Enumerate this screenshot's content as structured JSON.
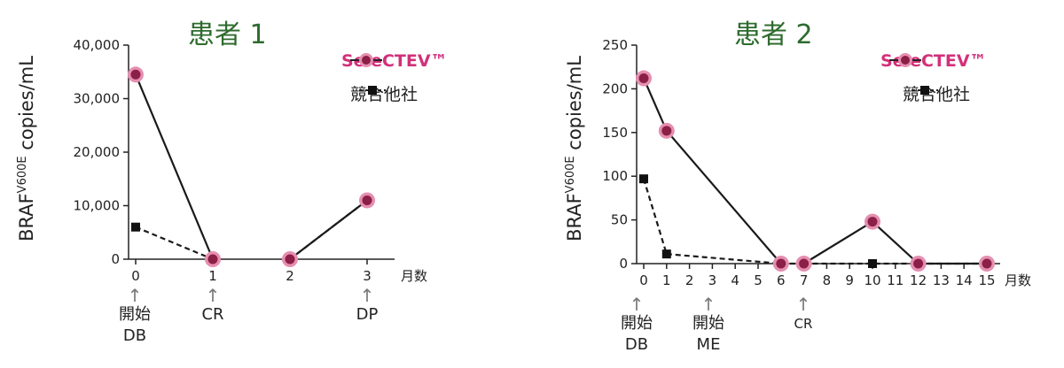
{
  "colors": {
    "selectev": "#d2307a",
    "marker_fill": "#8b1f45",
    "halo": "#e58fb0",
    "competitor": "#111111",
    "title": "#2e6b2e"
  },
  "chart_data": [
    {
      "type": "line",
      "title": "患者 1",
      "ylabel_main": "BRAF",
      "ylabel_sup": "V600E",
      "ylabel_rest": " copies/mL",
      "xunit": "月数",
      "ylim": [
        0,
        40000
      ],
      "yticks": [
        "0",
        "10,000",
        "20,000",
        "30,000",
        "40,000"
      ],
      "xticks": [
        "0",
        "1",
        "2",
        "3"
      ],
      "legend": {
        "selectev": "SeleCTEV™",
        "competitor": "競合他社",
        "position": "top-right"
      },
      "series": [
        {
          "name": "SeleCTEV™",
          "style": "solid-circle",
          "x": [
            0,
            1,
            2,
            3
          ],
          "y": [
            34500,
            0,
            0,
            11000
          ]
        },
        {
          "name": "競合他社",
          "style": "dashed-square",
          "x": [
            0,
            1,
            2,
            3
          ],
          "y": [
            6000,
            0,
            0,
            11000
          ]
        }
      ],
      "events": [
        {
          "x": 0,
          "line1": "開始",
          "line2": "DB"
        },
        {
          "x": 1,
          "line1": "CR",
          "line2": ""
        },
        {
          "x": 3,
          "line1": "DP",
          "line2": ""
        }
      ]
    },
    {
      "type": "line",
      "title": "患者 2",
      "ylabel_main": "BRAF",
      "ylabel_sup": "V600E",
      "ylabel_rest": " copies/mL",
      "xunit": "月数",
      "ylim": [
        0,
        250
      ],
      "yticks": [
        "0",
        "50",
        "100",
        "150",
        "200",
        "250"
      ],
      "xticks": [
        "0",
        "1",
        "2",
        "3",
        "4",
        "5",
        "6",
        "7",
        "8",
        "9",
        "10",
        "11",
        "12",
        "13",
        "14",
        "15"
      ],
      "legend": {
        "selectev": "SeleCTEV™",
        "competitor": "競合他社",
        "position": "top-right"
      },
      "series": [
        {
          "name": "SeleCTEV™",
          "style": "solid-circle",
          "x": [
            0,
            1,
            6,
            7,
            10,
            12,
            15
          ],
          "y": [
            212,
            152,
            0,
            0,
            48,
            0,
            0
          ]
        },
        {
          "name": "競合他社",
          "style": "dashed-square",
          "x": [
            0,
            1,
            6,
            7,
            10,
            12,
            15
          ],
          "y": [
            97,
            11,
            0,
            0,
            0,
            0,
            0
          ]
        }
      ],
      "events": [
        {
          "x": 0,
          "line1": "開始",
          "line2": "DB"
        },
        {
          "x": 3,
          "line1": "開始",
          "line2": "ME"
        },
        {
          "x": 7,
          "line1": "CR",
          "line2": ""
        }
      ]
    }
  ]
}
